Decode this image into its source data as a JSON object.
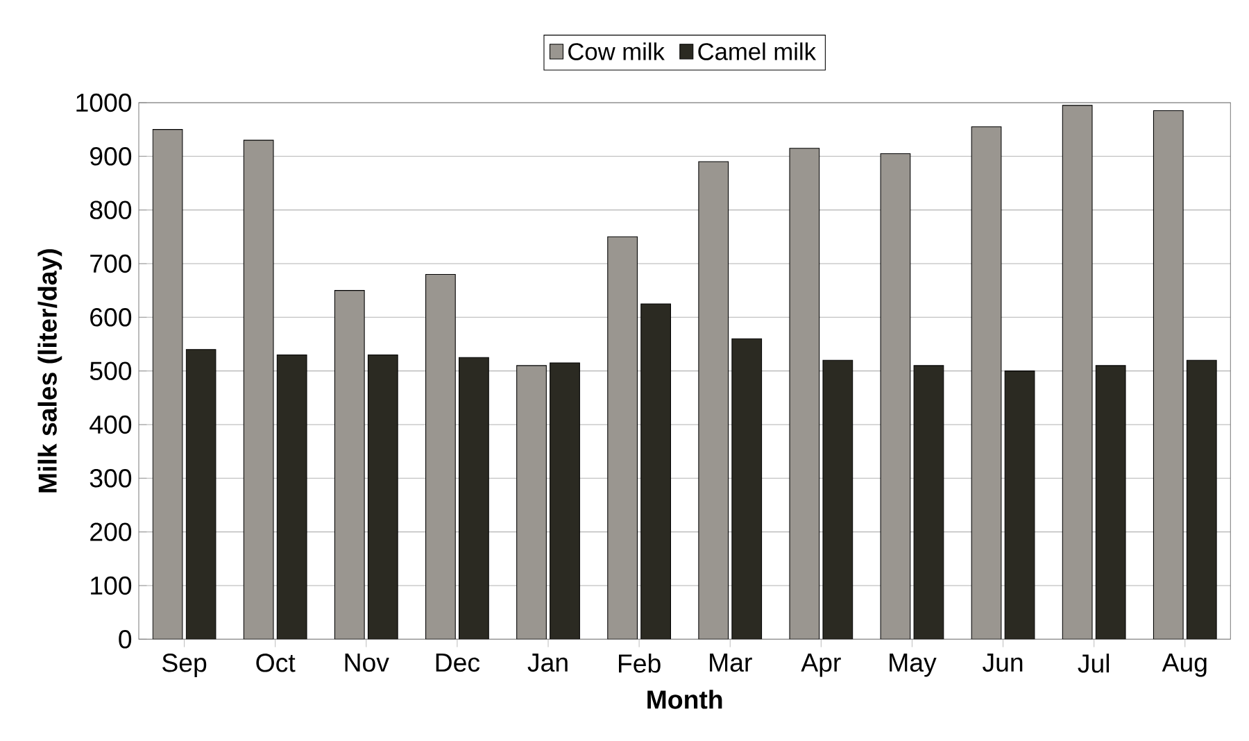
{
  "chart_data": {
    "type": "bar",
    "xlabel": "Month",
    "ylabel": "Milk sales  (liter/day)",
    "categories": [
      "Sep",
      "Oct",
      "Nov",
      "Dec",
      "Jan",
      "Feb",
      "Mar",
      "Apr",
      "May",
      "Jun",
      "Jul",
      "Aug"
    ],
    "series": [
      {
        "name": "Cow  milk",
        "color": "#9a9690",
        "values": [
          950,
          930,
          650,
          680,
          510,
          750,
          890,
          915,
          905,
          955,
          995,
          985
        ]
      },
      {
        "name": "Camel milk",
        "color": "#2b2a22",
        "values": [
          540,
          530,
          530,
          525,
          515,
          625,
          560,
          520,
          510,
          500,
          510,
          520
        ]
      }
    ],
    "ylim": [
      0,
      1000
    ],
    "yticks": [
      0,
      100,
      200,
      300,
      400,
      500,
      600,
      700,
      800,
      900,
      1000
    ],
    "grid": "y",
    "legend": "top"
  }
}
